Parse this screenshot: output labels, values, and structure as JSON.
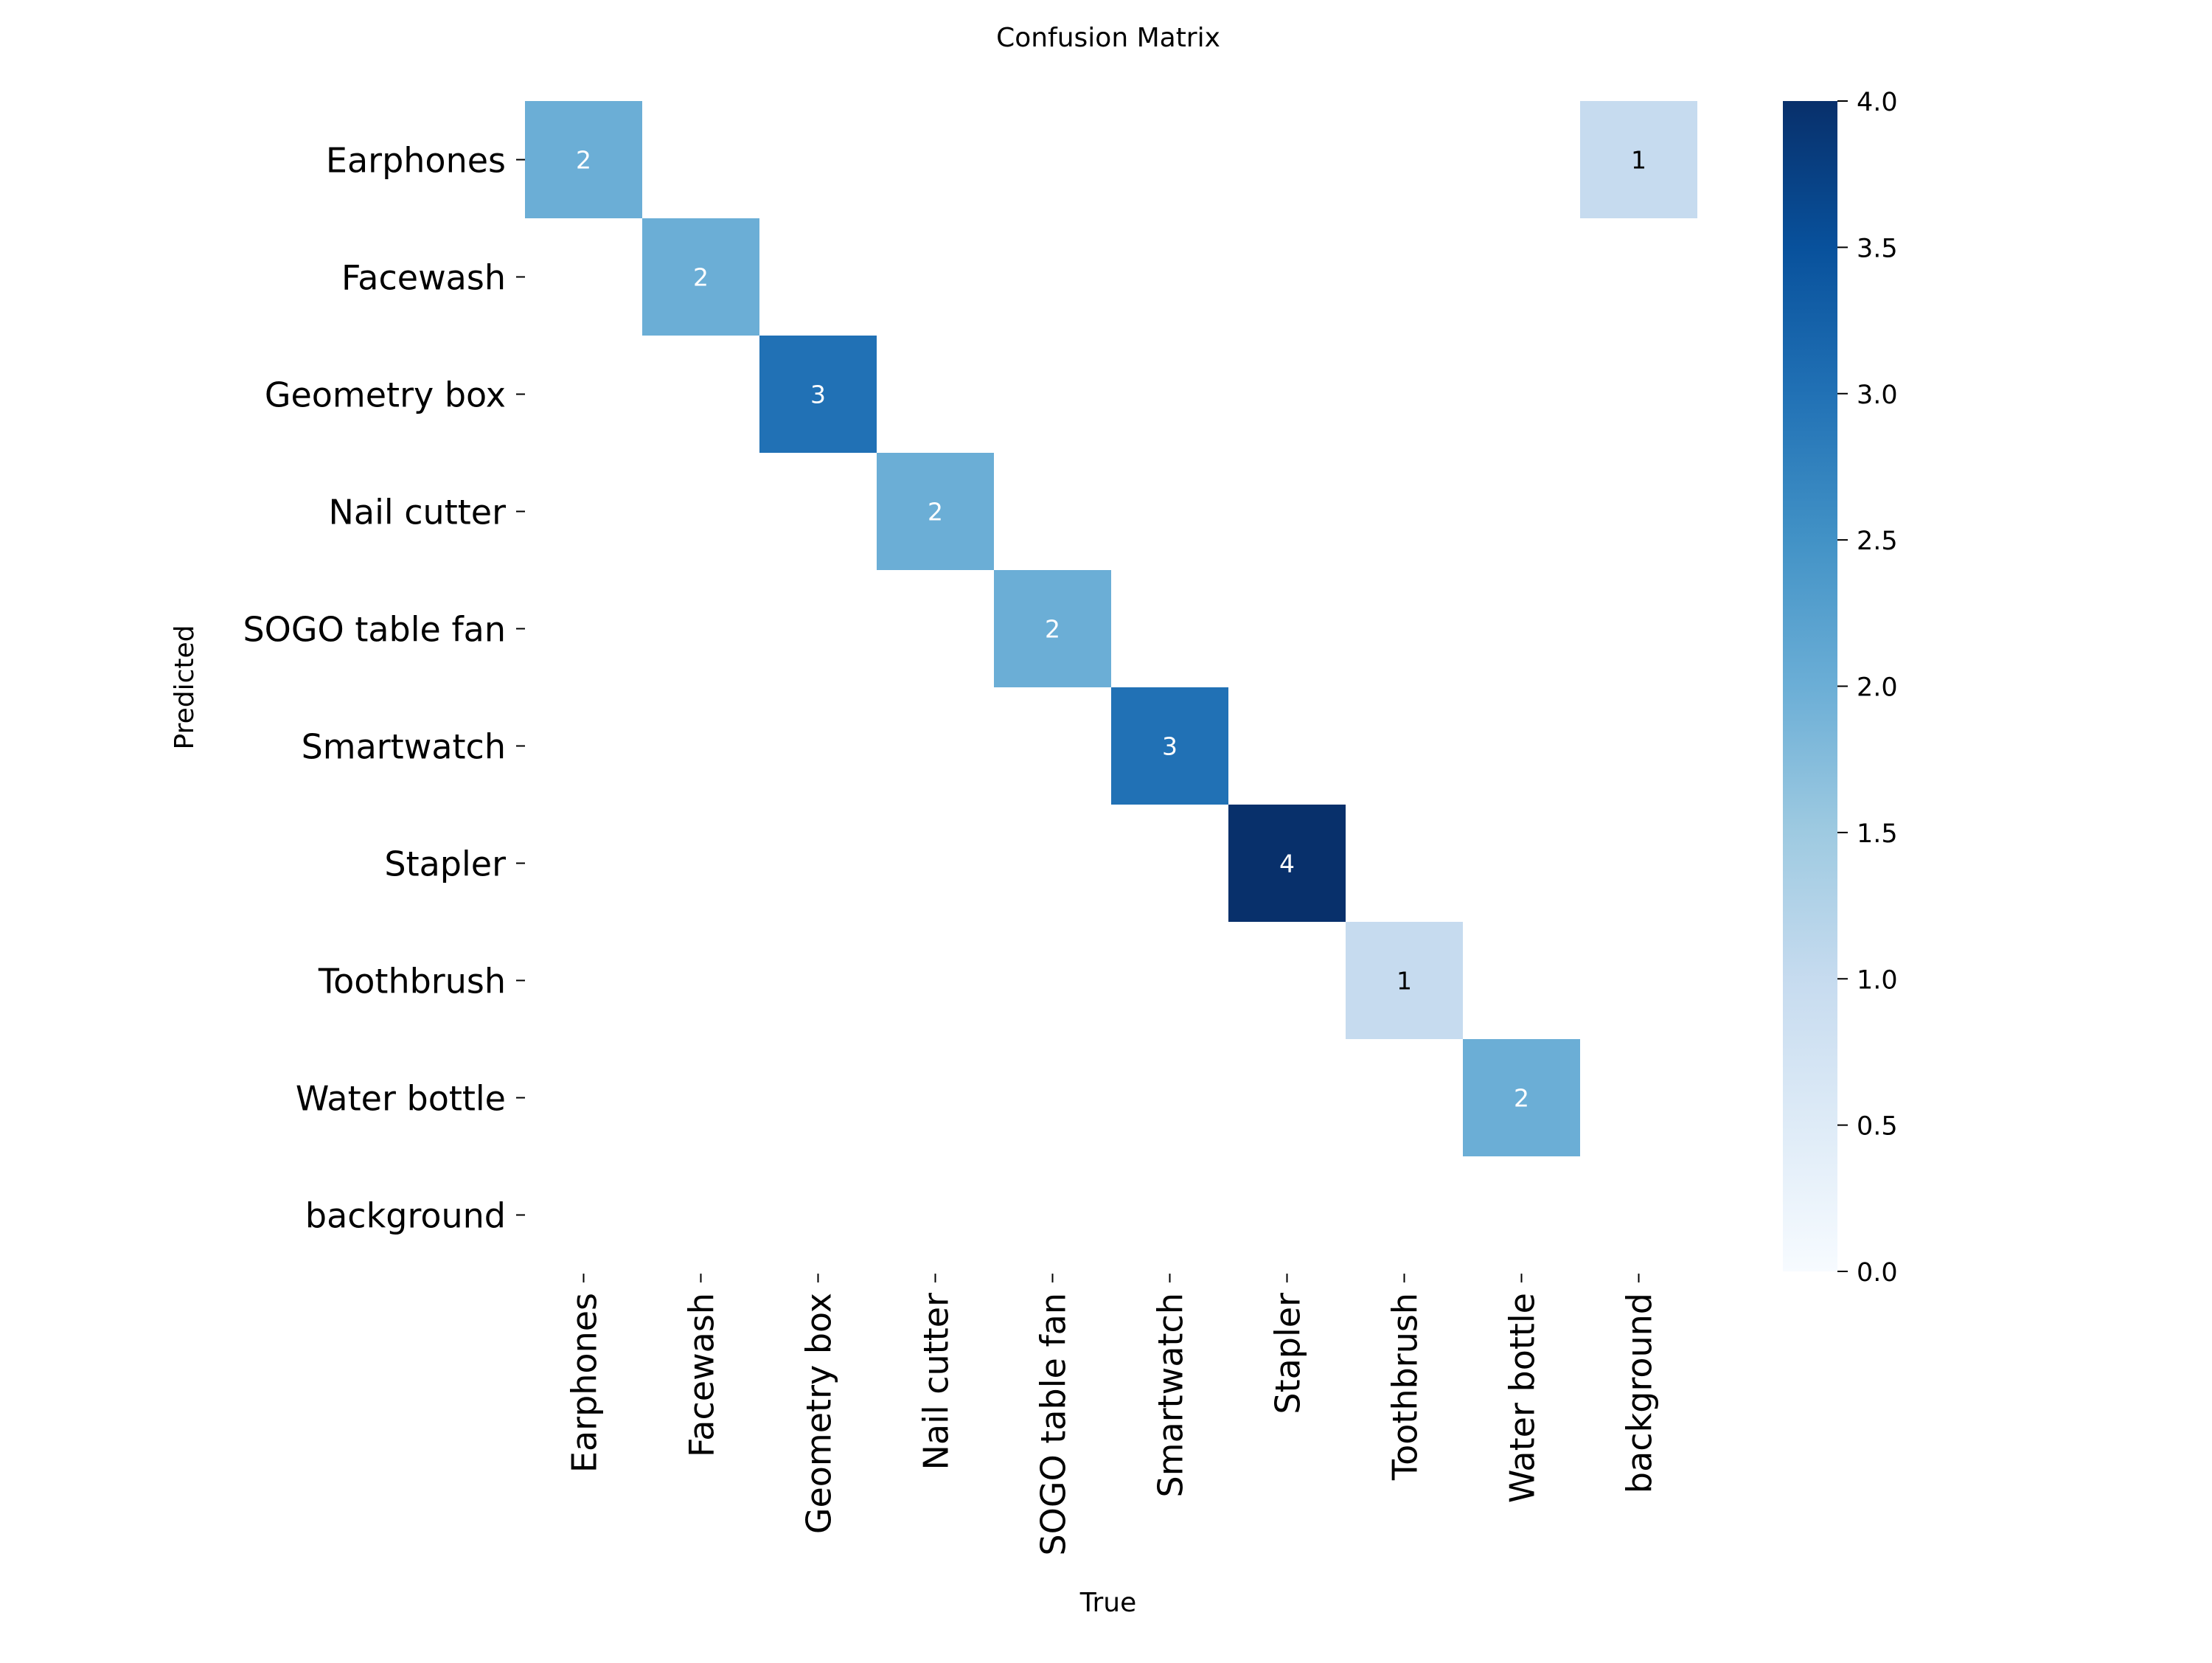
{
  "chart_data": {
    "type": "heatmap",
    "title": "Confusion Matrix",
    "xlabel": "True",
    "ylabel": "Predicted",
    "x_categories": [
      "Earphones",
      "Facewash",
      "Geometry box",
      "Nail cutter",
      "SOGO table fan",
      "Smartwatch",
      "Stapler",
      "Toothbrush",
      "Water bottle",
      "background"
    ],
    "y_categories": [
      "Earphones",
      "Facewash",
      "Geometry box",
      "Nail cutter",
      "SOGO table fan",
      "Smartwatch",
      "Stapler",
      "Toothbrush",
      "Water bottle",
      "background"
    ],
    "cells": [
      {
        "predicted": "Earphones",
        "true": "Earphones",
        "value": 2
      },
      {
        "predicted": "Earphones",
        "true": "background",
        "value": 1
      },
      {
        "predicted": "Facewash",
        "true": "Facewash",
        "value": 2
      },
      {
        "predicted": "Geometry box",
        "true": "Geometry box",
        "value": 3
      },
      {
        "predicted": "Nail cutter",
        "true": "Nail cutter",
        "value": 2
      },
      {
        "predicted": "SOGO table fan",
        "true": "SOGO table fan",
        "value": 2
      },
      {
        "predicted": "Smartwatch",
        "true": "Smartwatch",
        "value": 3
      },
      {
        "predicted": "Stapler",
        "true": "Stapler",
        "value": 4
      },
      {
        "predicted": "Toothbrush",
        "true": "Toothbrush",
        "value": 1
      },
      {
        "predicted": "Water bottle",
        "true": "Water bottle",
        "value": 2
      }
    ],
    "colorbar": {
      "range": [
        0.0,
        4.0
      ],
      "ticks": [
        "0.0",
        "0.5",
        "1.0",
        "1.5",
        "2.0",
        "2.5",
        "3.0",
        "3.5",
        "4.0"
      ],
      "colormap": "Blues"
    },
    "empty_cells_shown": false,
    "grid": false
  }
}
